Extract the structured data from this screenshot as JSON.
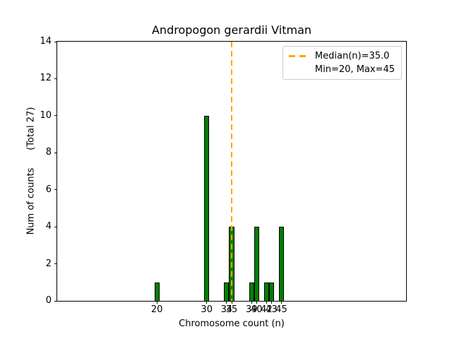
{
  "figure": {
    "title": "Andropogon gerardii Vitman",
    "xlabel": "Chromosome count (n)",
    "ylabel": "Num of counts      (Total 27)"
  },
  "legend": {
    "position": "upper right",
    "entries": [
      {
        "label": "Median(n)=35.0",
        "handle": "orange-dashed-line"
      },
      {
        "label": "Min=20, Max=45",
        "handle": "none"
      }
    ]
  },
  "chart_data": {
    "type": "bar",
    "title": "Andropogon gerardii Vitman",
    "xlabel": "Chromosome count (n)",
    "ylabel": "Num of counts      (Total 27)",
    "x": [
      20,
      30,
      34,
      35,
      39,
      40,
      42,
      43,
      45
    ],
    "counts": [
      1,
      10,
      1,
      4,
      1,
      4,
      1,
      1,
      4
    ],
    "bar_width": 1,
    "total_counts": 27,
    "median_n": 35.0,
    "min_n": 20,
    "max_n": 45,
    "xlim": [
      0,
      70
    ],
    "ylim": [
      0,
      14
    ],
    "xticks": [
      20,
      30,
      34,
      35,
      39,
      40,
      42,
      43,
      45
    ],
    "yticks": [
      0,
      2,
      4,
      6,
      8,
      10,
      12,
      14
    ],
    "grid": false,
    "legend_position": "upper right",
    "legend_entries": [
      "Median(n)=35.0",
      "Min=20, Max=45"
    ],
    "colors": {
      "bar_fill": "#008000",
      "bar_edge": "#000000",
      "median_line": "#FFA500",
      "legend_border": "#cccccc",
      "axes": "#000000"
    }
  }
}
